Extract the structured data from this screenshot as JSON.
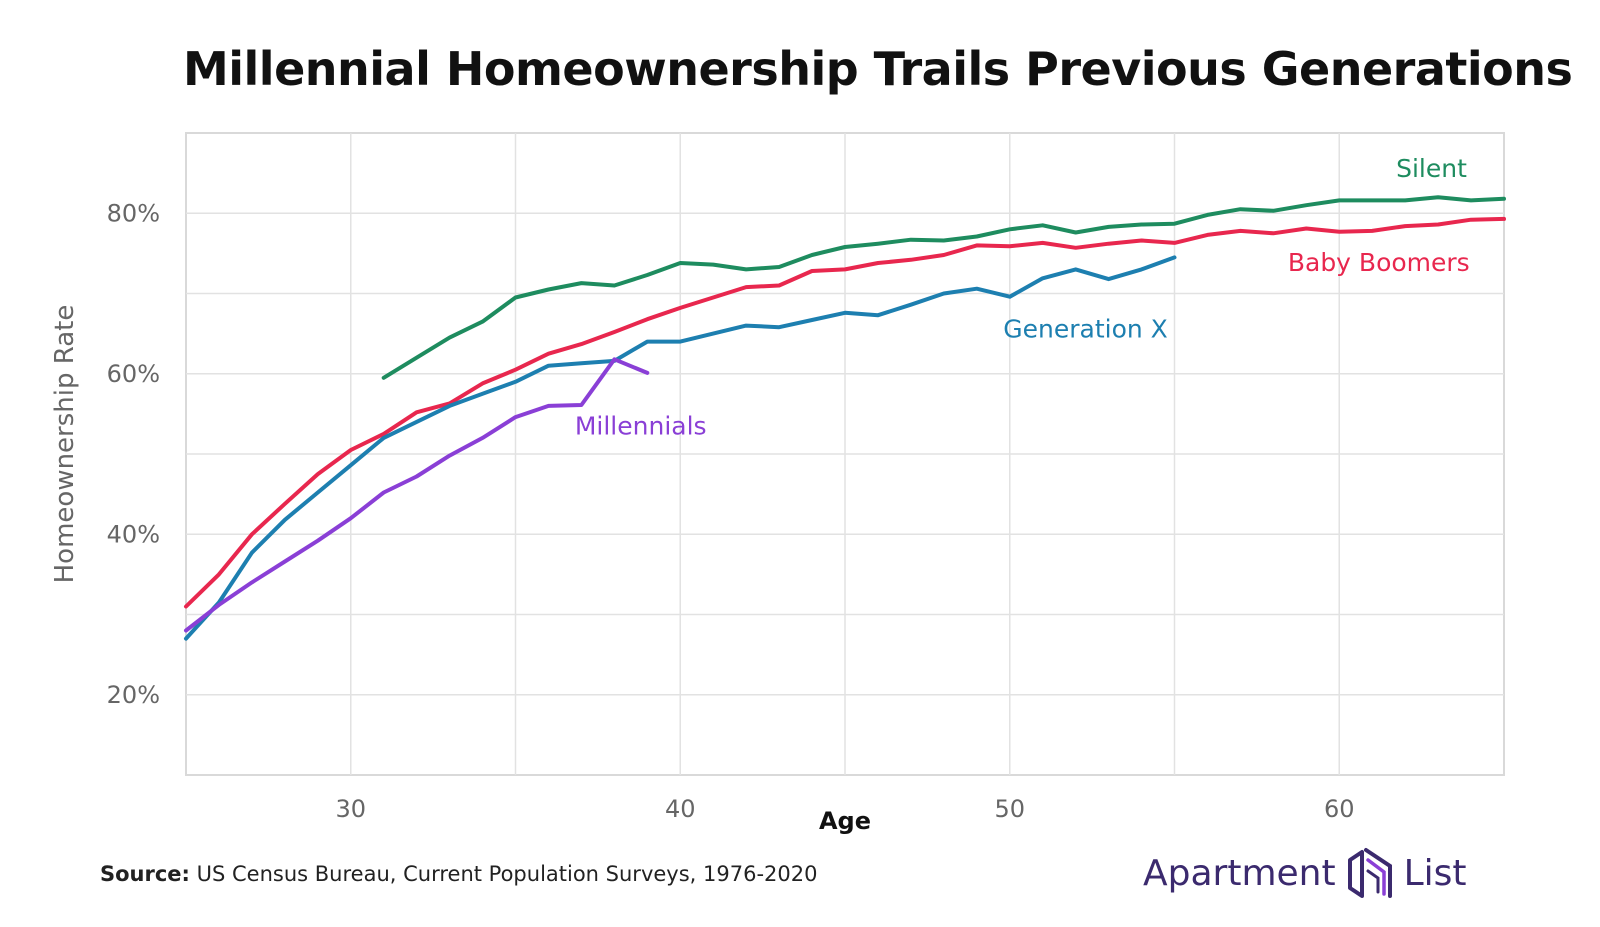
{
  "header": {
    "title": "Millennial Homeownership Trails Previous Generations"
  },
  "footer": {
    "source_label": "Source:",
    "source_text": "US Census Bureau, Current Population Surveys, 1976-2020",
    "logo_word1": "Apartment",
    "logo_word2": "List"
  },
  "chart_data": {
    "type": "line",
    "title": "Millennial Homeownership Trails Previous Generations",
    "xlabel": "Age",
    "ylabel": "Homeownership Rate",
    "xlim": [
      25,
      65
    ],
    "ylim": [
      10,
      90
    ],
    "xticks": [
      30,
      40,
      50,
      60
    ],
    "xtick_labels": [
      "30",
      "40",
      "50",
      "60"
    ],
    "yticks": [
      20,
      40,
      60,
      80
    ],
    "ytick_labels": [
      "20%",
      "40%",
      "60%",
      "80%"
    ],
    "grid": true,
    "series": [
      {
        "name": "Silent",
        "color": "#1e8c5f",
        "x": [
          31,
          32,
          33,
          34,
          35,
          36,
          37,
          38,
          39,
          40,
          41,
          42,
          43,
          44,
          45,
          46,
          47,
          48,
          49,
          50,
          51,
          52,
          53,
          54,
          55,
          56,
          57,
          58,
          59,
          60,
          61,
          62,
          63,
          64,
          65
        ],
        "values": [
          59.5,
          62,
          64.5,
          66.5,
          69.5,
          70.5,
          71.3,
          71,
          72.3,
          73.8,
          73.6,
          73,
          73.3,
          74.8,
          75.8,
          76.2,
          76.7,
          76.6,
          77.1,
          78,
          78.5,
          77.6,
          78.3,
          78.6,
          78.7,
          79.8,
          80.5,
          80.3,
          81,
          81.6,
          81.6,
          81.6,
          82,
          81.6,
          81.8
        ]
      },
      {
        "name": "Baby Boomers",
        "color": "#e8274e",
        "x": [
          25,
          26,
          27,
          28,
          29,
          30,
          31,
          32,
          33,
          34,
          35,
          36,
          37,
          38,
          39,
          40,
          41,
          42,
          43,
          44,
          45,
          46,
          47,
          48,
          49,
          50,
          51,
          52,
          53,
          54,
          55,
          56,
          57,
          58,
          59,
          60,
          61,
          62,
          63,
          64,
          65
        ],
        "values": [
          31,
          35,
          40,
          43.8,
          47.5,
          50.5,
          52.5,
          55.2,
          56.3,
          58.8,
          60.5,
          62.5,
          63.7,
          65.2,
          66.8,
          68.2,
          69.5,
          70.8,
          71,
          72.8,
          73,
          73.8,
          74.2,
          74.8,
          76,
          75.9,
          76.3,
          75.7,
          76.2,
          76.6,
          76.3,
          77.3,
          77.8,
          77.5,
          78.1,
          77.7,
          77.8,
          78.4,
          78.6,
          79.2,
          79.3
        ]
      },
      {
        "name": "Generation X",
        "color": "#1d7fb0",
        "x": [
          25,
          26,
          27,
          28,
          29,
          30,
          31,
          32,
          33,
          34,
          35,
          36,
          37,
          38,
          39,
          40,
          41,
          42,
          43,
          44,
          45,
          46,
          47,
          48,
          49,
          50,
          51,
          52,
          53,
          54,
          55
        ],
        "values": [
          27,
          31.5,
          37.7,
          41.8,
          45.2,
          48.6,
          52,
          54,
          56,
          57.5,
          59,
          61,
          61.3,
          61.6,
          64,
          64,
          65,
          66,
          65.8,
          66.7,
          67.6,
          67.3,
          68.6,
          70,
          70.6,
          69.6,
          71.9,
          73,
          71.8,
          73,
          74.5
        ]
      },
      {
        "name": "Millennials",
        "color": "#8a3fd6",
        "x": [
          25,
          26,
          27,
          28,
          29,
          30,
          31,
          32,
          33,
          34,
          35,
          36,
          37,
          38,
          39
        ],
        "values": [
          28,
          31.2,
          34,
          36.6,
          39.2,
          42,
          45.2,
          47.2,
          49.8,
          52,
          54.6,
          56,
          56.1,
          61.8,
          60.1
        ]
      }
    ],
    "annotations": [
      {
        "text": "Silent",
        "series": "Silent",
        "x": 62.8,
        "y": 84.5,
        "color": "#1e8c5f"
      },
      {
        "text": "Baby Boomers",
        "series": "Baby Boomers",
        "x": 61.2,
        "y": 72.8,
        "color": "#e8274e"
      },
      {
        "text": "Generation X",
        "series": "Generation X",
        "x": 52.3,
        "y": 64.5,
        "color": "#1d7fb0"
      },
      {
        "text": "Millennials",
        "series": "Millennials",
        "x": 38.8,
        "y": 52.4,
        "color": "#8a3fd6"
      }
    ]
  }
}
